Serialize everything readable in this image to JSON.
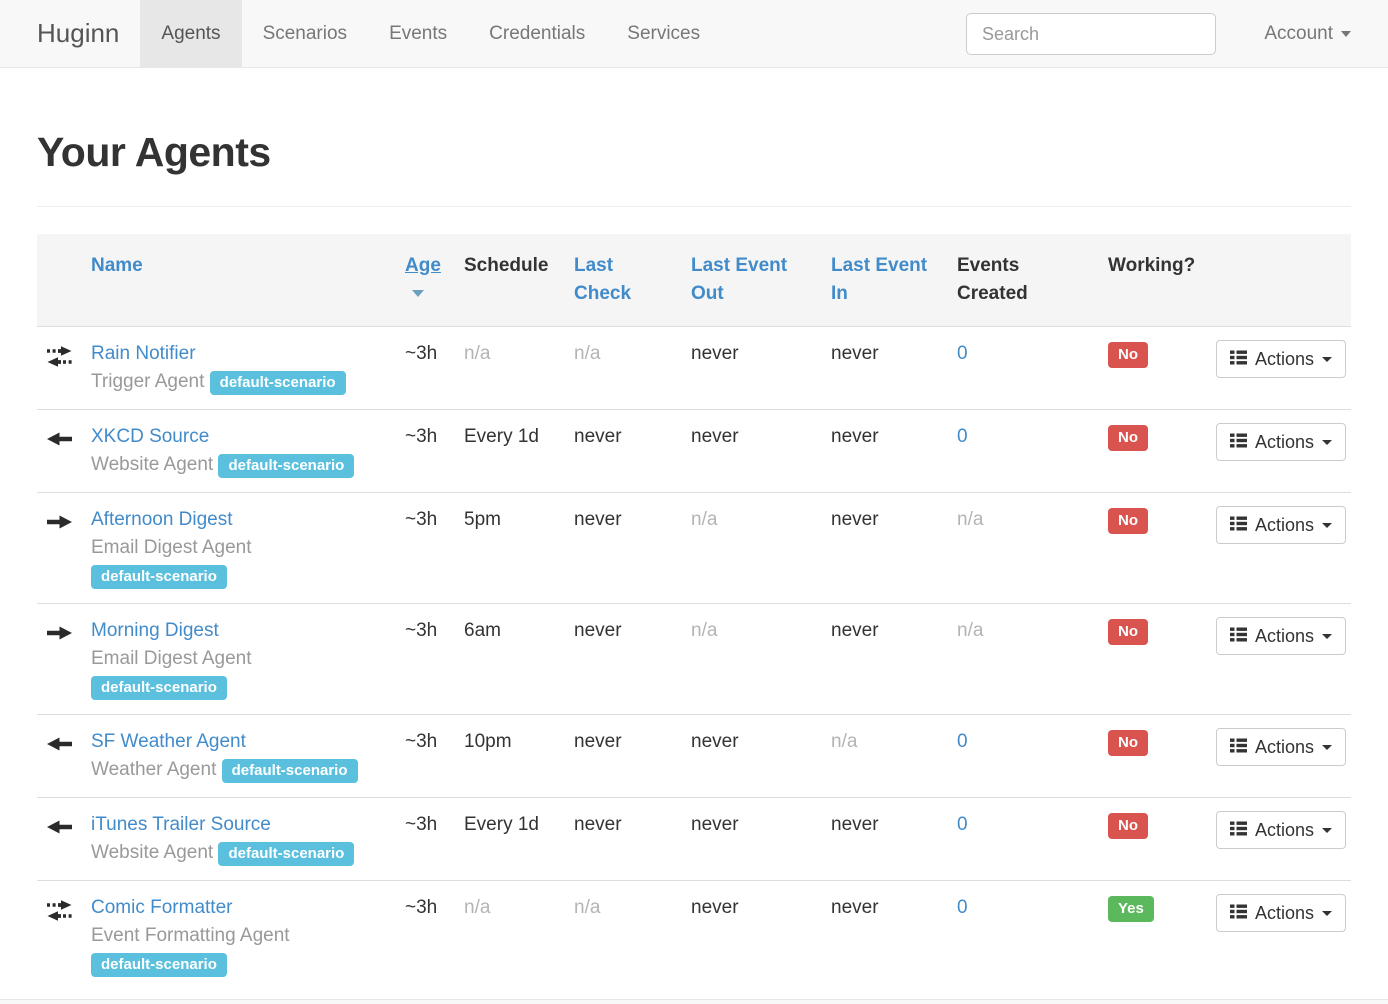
{
  "navbar": {
    "brand": "Huginn",
    "items": [
      {
        "label": "Agents",
        "active": true
      },
      {
        "label": "Scenarios",
        "active": false
      },
      {
        "label": "Events",
        "active": false
      },
      {
        "label": "Credentials",
        "active": false
      },
      {
        "label": "Services",
        "active": false
      }
    ],
    "search_placeholder": "Search",
    "account_label": "Account"
  },
  "page": {
    "title": "Your Agents"
  },
  "colors": {
    "link_blue": "#428bca",
    "badge_info": "#5bc0de",
    "badge_danger": "#d9534f",
    "badge_success": "#5cb85c",
    "navbar_bg": "#f8f8f8",
    "thead_bg": "#f5f5f5"
  },
  "table": {
    "columns": [
      {
        "key": "name",
        "label": "Name",
        "link": true,
        "sorted": false
      },
      {
        "key": "age",
        "label": "Age",
        "link": true,
        "sorted": "desc"
      },
      {
        "key": "schedule",
        "label": "Schedule",
        "link": false
      },
      {
        "key": "last_check",
        "label": "Last\nCheck",
        "link": true
      },
      {
        "key": "last_event_out",
        "label": "Last Event\nOut",
        "link": true
      },
      {
        "key": "last_event_in",
        "label": "Last Event\nIn",
        "link": true
      },
      {
        "key": "events_created",
        "label": "Events\nCreated",
        "link": false
      },
      {
        "key": "working",
        "label": "Working?",
        "link": false
      }
    ],
    "actions_label": "Actions",
    "rows": [
      {
        "icon": "bidirectional-arrows",
        "name": "Rain Notifier",
        "type": "Trigger Agent",
        "badge": "default-scenario",
        "badge_own_line": false,
        "age": "~3h",
        "schedule": "n/a",
        "last_check": "n/a",
        "last_event_out": "never",
        "last_event_in": "never",
        "events_created": "0",
        "working": "No"
      },
      {
        "icon": "arrow-left",
        "name": "XKCD Source",
        "type": "Website Agent",
        "badge": "default-scenario",
        "badge_own_line": false,
        "age": "~3h",
        "schedule": "Every 1d",
        "last_check": "never",
        "last_event_out": "never",
        "last_event_in": "never",
        "events_created": "0",
        "working": "No"
      },
      {
        "icon": "arrow-right",
        "name": "Afternoon Digest",
        "type": "Email Digest Agent",
        "badge": "default-scenario",
        "badge_own_line": true,
        "age": "~3h",
        "schedule": "5pm",
        "last_check": "never",
        "last_event_out": "n/a",
        "last_event_in": "never",
        "events_created": "n/a",
        "working": "No"
      },
      {
        "icon": "arrow-right",
        "name": "Morning Digest",
        "type": "Email Digest Agent",
        "badge": "default-scenario",
        "badge_own_line": true,
        "age": "~3h",
        "schedule": "6am",
        "last_check": "never",
        "last_event_out": "n/a",
        "last_event_in": "never",
        "events_created": "n/a",
        "working": "No"
      },
      {
        "icon": "arrow-left",
        "name": "SF Weather Agent",
        "type": "Weather Agent",
        "badge": "default-scenario",
        "badge_own_line": false,
        "age": "~3h",
        "schedule": "10pm",
        "last_check": "never",
        "last_event_out": "never",
        "last_event_in": "n/a",
        "events_created": "0",
        "working": "No"
      },
      {
        "icon": "arrow-left",
        "name": "iTunes Trailer Source",
        "type": "Website Agent",
        "badge": "default-scenario",
        "badge_own_line": false,
        "age": "~3h",
        "schedule": "Every 1d",
        "last_check": "never",
        "last_event_out": "never",
        "last_event_in": "never",
        "events_created": "0",
        "working": "No"
      },
      {
        "icon": "bidirectional-arrows",
        "name": "Comic Formatter",
        "type": "Event Formatting Agent",
        "badge": "default-scenario",
        "badge_own_line": true,
        "age": "~3h",
        "schedule": "n/a",
        "last_check": "n/a",
        "last_event_out": "never",
        "last_event_in": "never",
        "events_created": "0",
        "working": "Yes"
      }
    ]
  }
}
